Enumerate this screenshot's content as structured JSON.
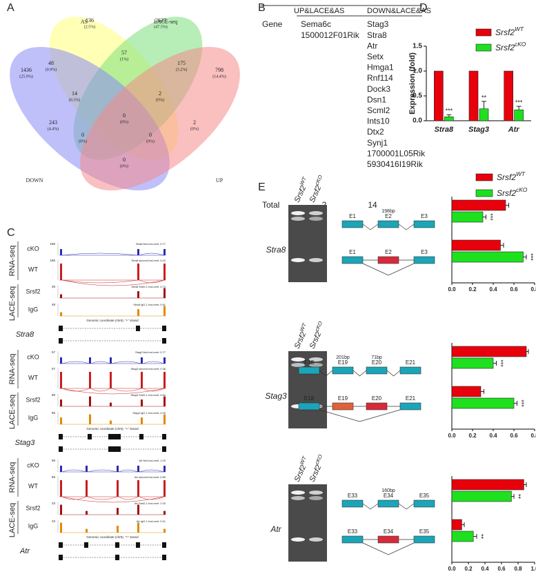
{
  "panel_labels": [
    "A",
    "B",
    "C",
    "D",
    "E"
  ],
  "venn": {
    "sets": [
      {
        "name": "AS",
        "color": "#c8b400",
        "fill": "#ffff7a"
      },
      {
        "name": "LACE-seq",
        "color": "#3aa63a",
        "fill": "#7be07b"
      },
      {
        "name": "DOWN",
        "color": "#4a4ad6",
        "fill": "#8a8af5"
      },
      {
        "name": "UP",
        "color": "#d64a4a",
        "fill": "#f58a8a"
      }
    ],
    "regions": [
      {
        "count": "136",
        "percent": "(2.5%)"
      },
      {
        "count": "2637",
        "percent": "(47.5%)"
      },
      {
        "count": "1436",
        "percent": "(25.9%)"
      },
      {
        "count": "798",
        "percent": "(14.4%)"
      },
      {
        "count": "57",
        "percent": "(1%)"
      },
      {
        "count": "48",
        "percent": "(0.9%)"
      },
      {
        "count": "175",
        "percent": "(3.2%)"
      },
      {
        "count": "14",
        "percent": "(0.3%)"
      },
      {
        "count": "2",
        "percent": "(0%)"
      },
      {
        "count": "0",
        "percent": "(0%)"
      },
      {
        "count": "243",
        "percent": "(4.4%)"
      },
      {
        "count": "2",
        "percent": "(0%)"
      },
      {
        "count": "0",
        "percent": "(0%)"
      },
      {
        "count": "0",
        "percent": "(0%)"
      },
      {
        "count": "0",
        "percent": "(0%)"
      }
    ]
  },
  "table": {
    "headers": [
      "UP&LACE&AS",
      "DOWN&LACE&AS"
    ],
    "row_label": "Gene",
    "columns": [
      {
        "genes": [
          "Sema6c",
          "1500012F01Rik"
        ],
        "highlighted": 0
      },
      {
        "genes": [
          "Stag3",
          "Stra8",
          "Atr",
          "Setx",
          "Hmga1",
          "Rnf114",
          "Dock3",
          "Dsn1",
          "Scml2",
          "Ints10",
          "Dtx2",
          "Synj1",
          "1700001L05Rik",
          "5930416I19Rik"
        ],
        "highlighted": 3
      }
    ],
    "total_label": "Total",
    "totals": [
      "2",
      "14"
    ]
  },
  "coverage": {
    "groups": [
      "RNA-seq",
      "LACE-seq"
    ],
    "genes": [
      {
        "name": "Stra8",
        "caption": "Genomic coordinate (chr6), \"+\" strand",
        "tracks": [
          {
            "label": "cKO",
            "scale": "186",
            "note": "Stra8 first IncLevel: 0.77"
          },
          {
            "label": "WT",
            "scale": "186",
            "note": "Stra8 second IncLevel: 0.43"
          },
          {
            "label": "Srsf2",
            "scale": "48",
            "note": "Stra8 Srsf2-1 IncLevel: 0.74"
          },
          {
            "label": "IgG",
            "scale": "48",
            "note": "Stra8 IgG-1 IncLevel: 0.51"
          }
        ]
      },
      {
        "name": "Stag3",
        "caption": "Genomic coordinate (chr5), \"+\" strand",
        "tracks": [
          {
            "label": "cKO",
            "scale": "57",
            "note": "Stag3 first IncLevel: 0.77"
          },
          {
            "label": "WT",
            "scale": "57",
            "note": "Stag3 second IncLevel: 0.36"
          },
          {
            "label": "Srsf2",
            "scale": "95",
            "note": "Stag3 Srsf2-1 IncLevel: 0.84"
          },
          {
            "label": "IgG",
            "scale": "95",
            "note": "Stag3 IgG-1 IncLevel: 0.29"
          }
        ]
      },
      {
        "name": "Atr",
        "caption": "Genomic coordinate (chr9), \"+\" strand",
        "tracks": [
          {
            "label": "cKO",
            "scale": "59",
            "note": "Atr first IncLevel: 1.00"
          },
          {
            "label": "WT",
            "scale": "59",
            "note": "Atr second IncLevel: 0.89"
          },
          {
            "label": "Srsf2",
            "scale": "23",
            "note": "Atr Srsf2-1 IncLevel: 1.00"
          },
          {
            "label": "IgG",
            "scale": "23",
            "note": "Atr IgG-1 IncLevel: 0.91"
          }
        ]
      }
    ]
  },
  "chart_data": {
    "type": "bar",
    "ylabel": "Expression (fold)",
    "categories": [
      "Stra8",
      "Stag3",
      "Atr"
    ],
    "series": [
      {
        "name": "Srsf2",
        "suffix": "WT",
        "color": "#e8000b",
        "values": [
          1,
          1,
          1
        ],
        "errors": [
          0,
          0,
          0
        ],
        "significance": [
          null,
          null,
          null
        ]
      },
      {
        "name": "Srsf2",
        "suffix": "cKO",
        "color": "#1ee01e",
        "values": [
          0.08,
          0.24,
          0.22
        ],
        "errors": [
          0.04,
          0.15,
          0.07
        ],
        "significance": [
          "***",
          "**",
          "***"
        ]
      }
    ],
    "ylim": [
      0,
      1.5
    ],
    "yticks": [
      {
        "value": 0,
        "label": "0.0"
      },
      {
        "value": 0.5,
        "label": "0.5"
      },
      {
        "value": 1,
        "label": "1.0"
      },
      {
        "value": 1.5,
        "label": "1.5"
      }
    ]
  },
  "splicing": {
    "series": [
      {
        "name": "Srsf2",
        "suffix": "WT",
        "color": "#e8000b"
      },
      {
        "name": "Srsf2",
        "suffix": "cKO",
        "color": "#1ee01e"
      }
    ],
    "rows": [
      {
        "gene": "Stra8",
        "exons": [
          "E1",
          "E2",
          "E3"
        ],
        "bp": [
          {
            "label": "198bp",
            "exon": 1
          }
        ],
        "chart": {
          "type": "bar",
          "xlim": [
            0,
            0.8
          ],
          "xticks": [
            {
              "value": 0,
              "label": "0.0"
            },
            {
              "value": 0.2,
              "label": "0.2"
            },
            {
              "value": 0.4,
              "label": "0.4"
            },
            {
              "value": 0.6,
              "label": "0.6"
            },
            {
              "value": 0.8,
              "label": "0.8"
            }
          ],
          "series": [
            {
              "values": [
                0.52,
                0.47
              ],
              "errors": [
                0.03,
                0.03
              ],
              "significance": [
                null,
                null
              ]
            },
            {
              "values": [
                0.3,
                0.69
              ],
              "errors": [
                0.03,
                0.03
              ],
              "significance": [
                "***",
                "***"
              ]
            }
          ]
        }
      },
      {
        "gene": "Stag3",
        "exons": [
          "E18",
          "E19",
          "E20",
          "E21"
        ],
        "bp": [
          {
            "label": "201bp",
            "exon": 1
          },
          {
            "label": "71bp",
            "exon": 2
          }
        ],
        "chart": {
          "type": "bar",
          "xlim": [
            0,
            0.8
          ],
          "xticks": [
            {
              "value": 0,
              "label": "0.0"
            },
            {
              "value": 0.2,
              "label": "0.2"
            },
            {
              "value": 0.4,
              "label": "0.4"
            },
            {
              "value": 0.6,
              "label": "0.6"
            },
            {
              "value": 0.8,
              "label": "0.8"
            }
          ],
          "series": [
            {
              "values": [
                0.72,
                0.28
              ],
              "errors": [
                0.02,
                0.03
              ],
              "significance": [
                null,
                null
              ]
            },
            {
              "values": [
                0.4,
                0.6
              ],
              "errors": [
                0.03,
                0.03
              ],
              "significance": [
                "***",
                "***"
              ]
            }
          ]
        }
      },
      {
        "gene": "Atr",
        "exons": [
          "E33",
          "E34",
          "E35"
        ],
        "bp": [
          {
            "label": "160bp",
            "exon": 1
          }
        ],
        "chart": {
          "type": "bar",
          "xlim": [
            0,
            1
          ],
          "xticks": [
            {
              "value": 0,
              "label": "0.0"
            },
            {
              "value": 0.2,
              "label": "0.2"
            },
            {
              "value": 0.4,
              "label": "0.4"
            },
            {
              "value": 0.6,
              "label": "0.6"
            },
            {
              "value": 0.8,
              "label": "0.8"
            },
            {
              "value": 1,
              "label": "1.0"
            }
          ],
          "series": [
            {
              "values": [
                0.87,
                0.12
              ],
              "errors": [
                0.03,
                0.03
              ],
              "significance": [
                null,
                null
              ]
            },
            {
              "values": [
                0.72,
                0.26
              ],
              "errors": [
                0.03,
                0.04
              ],
              "significance": [
                "**",
                "**"
              ]
            }
          ]
        }
      }
    ]
  }
}
